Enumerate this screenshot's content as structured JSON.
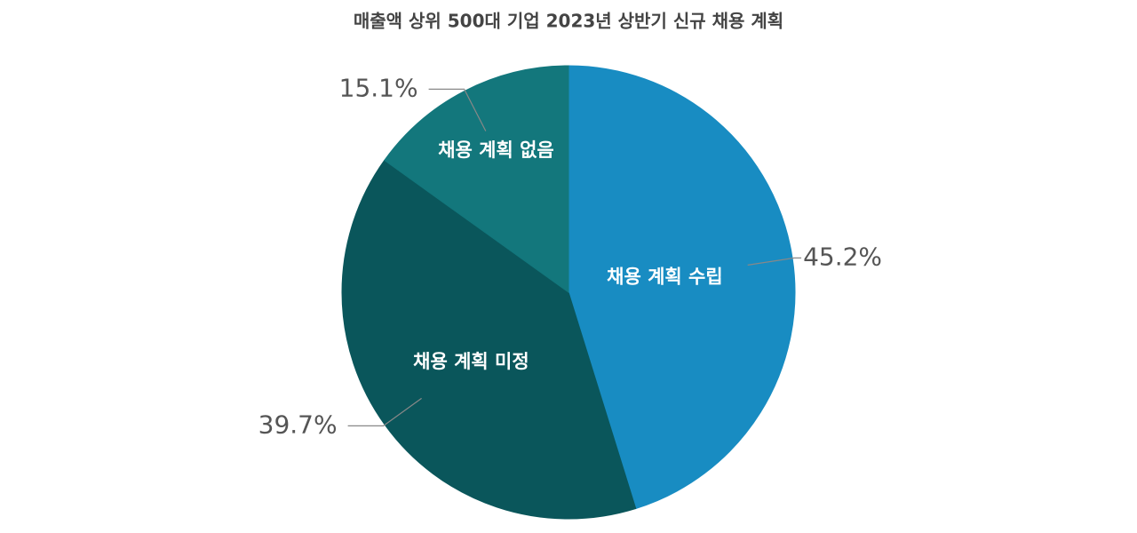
{
  "chart_data": {
    "type": "pie",
    "title": "매출액 상위 500대 기업 2023년 상반기 신규 채용 계획",
    "categories": [
      "채용 계획 수립",
      "채용 계획 미정",
      "채용 계획 없음"
    ],
    "values": [
      45.2,
      39.7,
      15.1
    ],
    "value_labels": [
      "45.2%",
      "39.7%",
      "15.1%"
    ],
    "colors": [
      "#188cc2",
      "#0a565b",
      "#13777c"
    ]
  }
}
